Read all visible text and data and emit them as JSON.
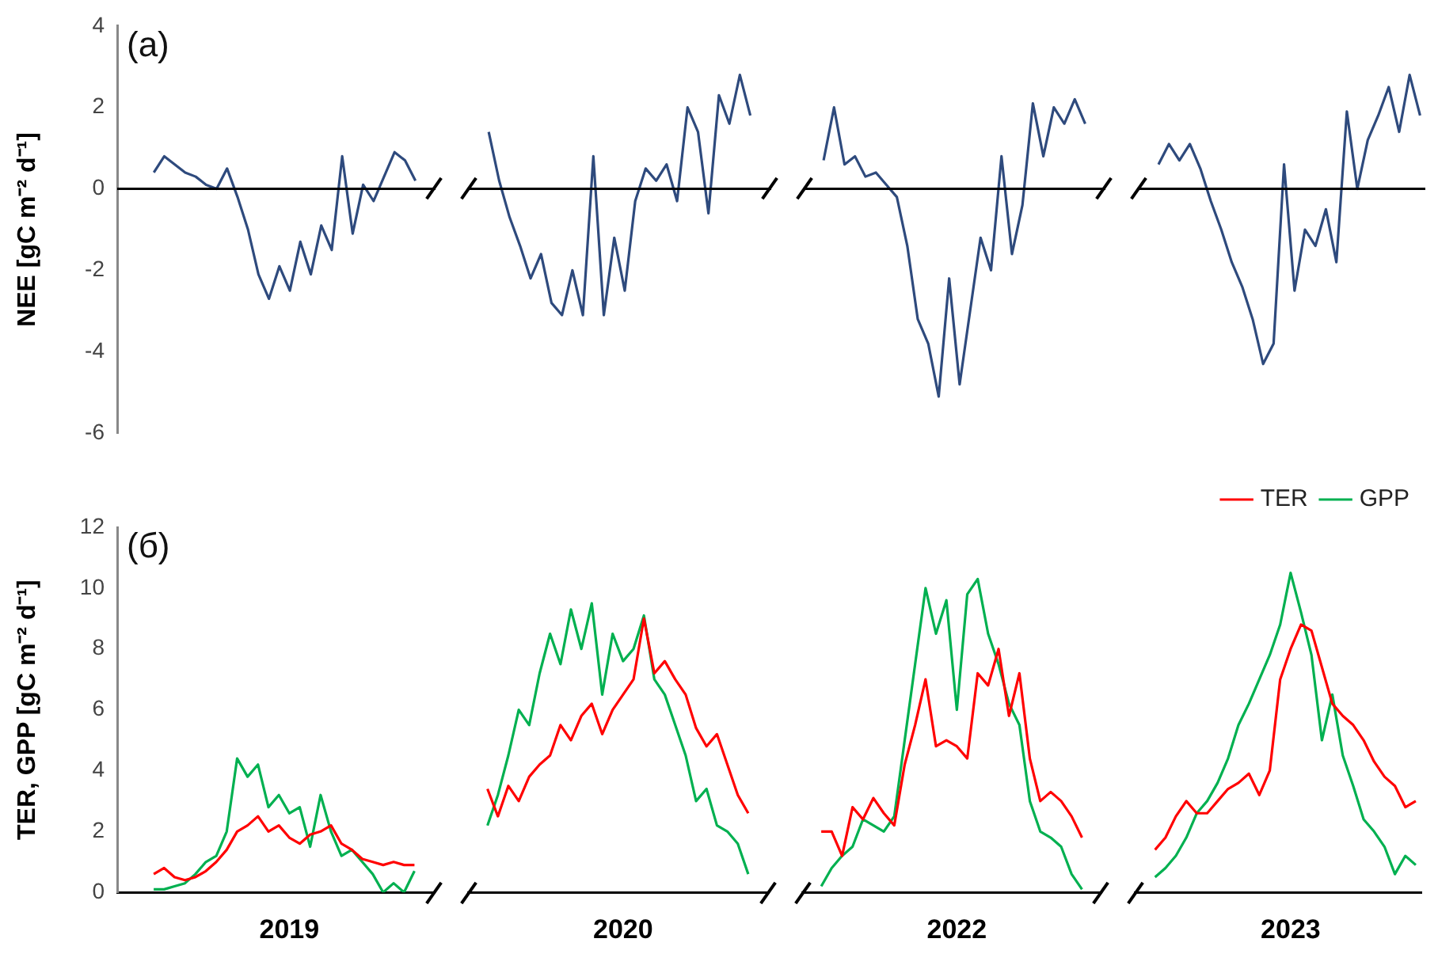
{
  "chart_data": [
    {
      "type": "line",
      "ylabel": "NEE [gC m⁻² d⁻¹]",
      "annotations": [
        "(a)"
      ],
      "ylim": [
        -6,
        4
      ],
      "yticks": [
        -6,
        -4,
        -2,
        0,
        2,
        4
      ],
      "tick_labels": "y",
      "ref_lines": [
        {
          "axis": "y",
          "value": 0,
          "color": "#000000"
        }
      ],
      "categories": [
        null,
        null,
        null,
        null,
        null,
        null,
        null,
        null,
        null,
        null,
        null,
        null,
        null,
        null,
        null,
        null,
        "2019",
        null,
        null,
        null,
        null,
        null,
        null,
        null,
        null,
        null,
        null,
        null,
        null,
        null,
        null,
        null,
        null,
        null,
        null,
        null,
        null,
        null,
        null,
        null,
        null,
        null,
        null,
        null,
        null,
        null,
        null,
        null,
        "2020",
        null,
        null,
        null,
        null,
        null,
        null,
        null,
        null,
        null,
        null,
        null,
        null,
        null,
        null,
        null,
        null,
        null,
        null,
        null,
        null,
        null,
        null,
        null,
        null,
        null,
        null,
        null,
        null,
        null,
        null,
        null,
        "2022",
        null,
        null,
        null,
        null,
        null,
        null,
        null,
        null,
        null,
        null,
        null,
        null,
        null,
        null,
        null,
        null,
        null,
        null,
        null,
        null,
        null,
        null,
        null,
        null,
        null,
        null,
        null,
        null,
        null,
        null,
        null,
        "2023",
        null,
        null,
        null,
        null,
        null,
        null,
        null,
        null,
        null,
        null,
        null,
        null
      ],
      "series": [
        {
          "color": "#2e4a7d",
          "values": [
            null,
            null,
            null,
            0.4,
            0.8,
            0.6,
            0.4,
            0.3,
            0.1,
            0.0,
            0.5,
            -0.2,
            -1.0,
            -2.1,
            -2.7,
            -1.9,
            -2.5,
            -1.3,
            -2.1,
            -0.9,
            -1.5,
            0.8,
            -1.1,
            0.1,
            -0.3,
            0.3,
            0.9,
            0.7,
            0.2,
            null,
            null,
            null,
            null,
            null,
            null,
            1.4,
            0.2,
            -0.7,
            -1.4,
            -2.2,
            -1.6,
            -2.8,
            -3.1,
            -2.0,
            -3.1,
            0.8,
            -3.1,
            -1.2,
            -2.5,
            -0.3,
            0.5,
            0.2,
            0.6,
            -0.3,
            2.0,
            1.4,
            -0.6,
            2.3,
            1.6,
            2.8,
            1.8,
            null,
            null,
            null,
            null,
            null,
            null,
            0.7,
            2.0,
            0.6,
            0.8,
            0.3,
            0.4,
            0.1,
            -0.2,
            -1.4,
            -3.2,
            -3.8,
            -5.1,
            -2.2,
            -4.8,
            -3.0,
            -1.2,
            -2.0,
            0.8,
            -1.6,
            -0.4,
            2.1,
            0.8,
            2.0,
            1.6,
            2.2,
            1.6,
            null,
            null,
            null,
            null,
            null,
            null,
            0.6,
            1.1,
            0.7,
            1.1,
            0.5,
            -0.3,
            -1.0,
            -1.8,
            -2.4,
            -3.2,
            -4.3,
            -3.8,
            0.6,
            -2.5,
            -1.0,
            -1.4,
            -0.5,
            -1.8,
            1.9,
            0.0,
            1.2,
            1.8,
            2.5,
            1.4,
            2.8,
            1.8
          ]
        }
      ]
    },
    {
      "type": "line",
      "ylabel": "TER, GPP [gC m⁻² d⁻¹]",
      "annotations": [
        "(б)"
      ],
      "ylim": [
        0,
        12
      ],
      "yticks": [
        0,
        2,
        4,
        6,
        8,
        10,
        12
      ],
      "legend": "top right",
      "categories": [
        null,
        null,
        null,
        null,
        null,
        null,
        null,
        null,
        null,
        null,
        null,
        null,
        null,
        null,
        null,
        null,
        "2019",
        null,
        null,
        null,
        null,
        null,
        null,
        null,
        null,
        null,
        null,
        null,
        null,
        null,
        null,
        null,
        null,
        null,
        null,
        null,
        null,
        null,
        null,
        null,
        null,
        null,
        null,
        null,
        null,
        null,
        null,
        null,
        "2020",
        null,
        null,
        null,
        null,
        null,
        null,
        null,
        null,
        null,
        null,
        null,
        null,
        null,
        null,
        null,
        null,
        null,
        null,
        null,
        null,
        null,
        null,
        null,
        null,
        null,
        null,
        null,
        null,
        null,
        null,
        null,
        "2022",
        null,
        null,
        null,
        null,
        null,
        null,
        null,
        null,
        null,
        null,
        null,
        null,
        null,
        null,
        null,
        null,
        null,
        null,
        null,
        null,
        null,
        null,
        null,
        null,
        null,
        null,
        null,
        null,
        null,
        null,
        null,
        "2023",
        null,
        null,
        null,
        null,
        null,
        null,
        null,
        null,
        null,
        null,
        null,
        null
      ],
      "series": [
        {
          "name": "TER",
          "color": "#ff0000",
          "values": [
            null,
            null,
            null,
            0.6,
            0.8,
            0.5,
            0.4,
            0.5,
            0.7,
            1.0,
            1.4,
            2.0,
            2.2,
            2.5,
            2.0,
            2.2,
            1.8,
            1.6,
            1.9,
            2.0,
            2.2,
            1.6,
            1.4,
            1.1,
            1.0,
            0.9,
            1.0,
            0.9,
            0.9,
            null,
            null,
            null,
            null,
            null,
            null,
            3.4,
            2.5,
            3.5,
            3.0,
            3.8,
            4.2,
            4.5,
            5.5,
            5.0,
            5.8,
            6.2,
            5.2,
            6.0,
            6.5,
            7.0,
            9.0,
            7.2,
            7.6,
            7.0,
            6.5,
            5.4,
            4.8,
            5.2,
            4.2,
            3.2,
            2.6,
            null,
            null,
            null,
            null,
            null,
            null,
            2.0,
            2.0,
            1.2,
            2.8,
            2.4,
            3.1,
            2.6,
            2.2,
            4.2,
            5.5,
            7.0,
            4.8,
            5.0,
            4.8,
            4.4,
            7.2,
            6.8,
            8.0,
            5.8,
            7.2,
            4.4,
            3.0,
            3.3,
            3.0,
            2.5,
            1.8,
            null,
            null,
            null,
            null,
            null,
            null,
            1.4,
            1.8,
            2.5,
            3.0,
            2.6,
            2.6,
            3.0,
            3.4,
            3.6,
            3.9,
            3.2,
            4.0,
            7.0,
            8.0,
            8.8,
            8.6,
            7.4,
            6.2,
            5.8,
            5.5,
            5.0,
            4.3,
            3.8,
            3.5,
            2.8,
            3.0
          ]
        },
        {
          "name": "GPP",
          "color": "#00b050",
          "values": [
            null,
            null,
            null,
            0.1,
            0.1,
            0.2,
            0.3,
            0.6,
            1.0,
            1.2,
            2.0,
            4.4,
            3.8,
            4.2,
            2.8,
            3.2,
            2.6,
            2.8,
            1.5,
            3.2,
            2.0,
            1.2,
            1.4,
            1.0,
            0.6,
            0.0,
            0.3,
            0.0,
            0.7,
            null,
            null,
            null,
            null,
            null,
            null,
            2.2,
            3.2,
            4.5,
            6.0,
            5.5,
            7.2,
            8.5,
            7.5,
            9.3,
            8.0,
            9.5,
            6.5,
            8.5,
            7.6,
            8.0,
            9.1,
            7.0,
            6.5,
            5.5,
            4.5,
            3.0,
            3.4,
            2.2,
            2.0,
            1.6,
            0.6,
            null,
            null,
            null,
            null,
            null,
            null,
            0.2,
            0.8,
            1.2,
            1.5,
            2.4,
            2.2,
            2.0,
            2.5,
            5.0,
            7.5,
            10.0,
            8.5,
            9.6,
            6.0,
            9.8,
            10.3,
            8.5,
            7.5,
            6.2,
            5.5,
            3.0,
            2.0,
            1.8,
            1.5,
            0.6,
            0.1,
            null,
            null,
            null,
            null,
            null,
            null,
            0.5,
            0.8,
            1.2,
            1.8,
            2.6,
            3.0,
            3.6,
            4.4,
            5.5,
            6.2,
            7.0,
            7.8,
            8.8,
            10.5,
            9.2,
            7.8,
            5.0,
            6.5,
            4.5,
            3.5,
            2.4,
            2.0,
            1.5,
            0.6,
            1.2,
            0.9
          ]
        }
      ]
    }
  ]
}
